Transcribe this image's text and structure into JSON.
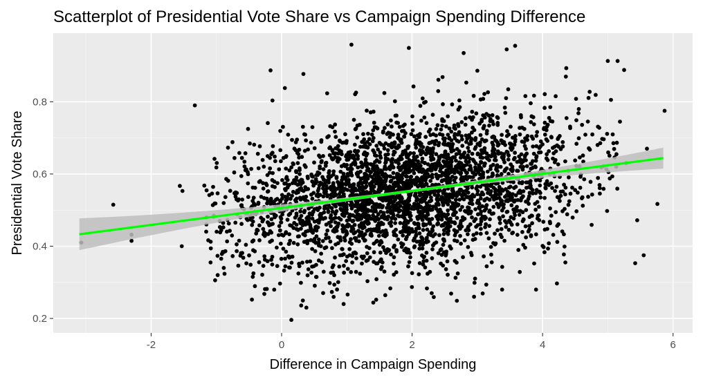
{
  "chart_data": {
    "type": "scatter",
    "title": "Scatterplot of Presidential Vote Share vs Campaign Spending Difference",
    "xlabel": "Difference in Campaign Spending",
    "ylabel": "Presidential Vote Share",
    "xlim": [
      -3.5,
      6.3
    ],
    "ylim": [
      0.16,
      0.99
    ],
    "x_ticks": [
      -2,
      0,
      2,
      4,
      6
    ],
    "x_tick_labels": [
      "-2",
      "0",
      "2",
      "4",
      "6"
    ],
    "y_ticks": [
      0.2,
      0.4,
      0.6,
      0.8
    ],
    "y_tick_labels": [
      "0.2",
      "0.4",
      "0.6",
      "0.8"
    ],
    "grid": true,
    "legend": "none",
    "point_color": "#000000",
    "trend_line": {
      "type": "linear",
      "x_range": [
        -3.1,
        5.85
      ],
      "y_start": 0.433,
      "y_end": 0.644,
      "color": "#00ff00",
      "band_color": "#bebebe"
    },
    "cloud": {
      "count": 3300,
      "x_mean": 1.9,
      "x_sd": 1.35,
      "intercept": 0.507,
      "slope": 0.0236,
      "resid_sd": 0.1
    },
    "points": [
      {
        "x": -3.07,
        "y": 0.41
      },
      {
        "x": -2.58,
        "y": 0.515
      },
      {
        "x": -2.3,
        "y": 0.432
      },
      {
        "x": -2.3,
        "y": 0.415
      },
      {
        "x": -1.56,
        "y": 0.567
      },
      {
        "x": -1.52,
        "y": 0.553
      },
      {
        "x": -1.53,
        "y": 0.4
      },
      {
        "x": -1.33,
        "y": 0.79
      },
      {
        "x": -1.15,
        "y": 0.48
      },
      {
        "x": -1.0,
        "y": 0.618
      },
      {
        "x": -0.98,
        "y": 0.32
      },
      {
        "x": -0.17,
        "y": 0.887
      },
      {
        "x": 0.05,
        "y": 0.838
      },
      {
        "x": 0.15,
        "y": 0.196
      },
      {
        "x": 0.3,
        "y": 0.236
      },
      {
        "x": 0.38,
        "y": 0.23
      },
      {
        "x": 0.95,
        "y": 0.24
      },
      {
        "x": 1.07,
        "y": 0.958
      },
      {
        "x": 1.45,
        "y": 0.252
      },
      {
        "x": 1.95,
        "y": 0.949
      },
      {
        "x": 2.3,
        "y": 0.27
      },
      {
        "x": 2.79,
        "y": 0.935
      },
      {
        "x": 3.0,
        "y": 0.886
      },
      {
        "x": 2.95,
        "y": 0.26
      },
      {
        "x": 3.38,
        "y": 0.28
      },
      {
        "x": 3.45,
        "y": 0.945
      },
      {
        "x": 3.58,
        "y": 0.955
      },
      {
        "x": 3.9,
        "y": 0.28
      },
      {
        "x": 4.22,
        "y": 0.297
      },
      {
        "x": 4.35,
        "y": 0.355
      },
      {
        "x": 5.0,
        "y": 0.913
      },
      {
        "x": 5.15,
        "y": 0.913
      },
      {
        "x": 5.25,
        "y": 0.888
      },
      {
        "x": 5.28,
        "y": 0.63
      },
      {
        "x": 5.42,
        "y": 0.353
      },
      {
        "x": 5.45,
        "y": 0.472
      },
      {
        "x": 5.6,
        "y": 0.67
      },
      {
        "x": 5.76,
        "y": 0.517
      },
      {
        "x": 5.87,
        "y": 0.775
      },
      {
        "x": 5.55,
        "y": 0.375
      }
    ]
  }
}
